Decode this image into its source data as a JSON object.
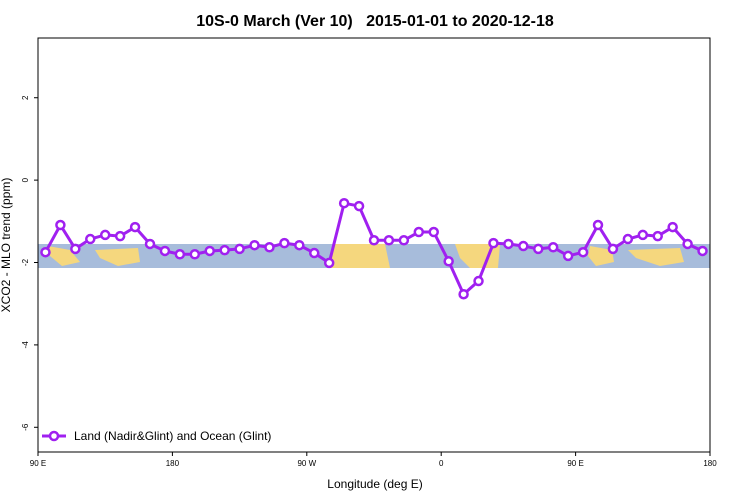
{
  "chart_data": {
    "type": "line",
    "title": "10S-0 March (Ver 10)   2015-01-01 to 2020-12-18",
    "x_label": "Longitude (deg E)",
    "y_label": "XCO2 - MLO trend (ppm)",
    "x": [
      95,
      105,
      115,
      125,
      135,
      145,
      155,
      165,
      175,
      185,
      195,
      205,
      215,
      225,
      235,
      245,
      255,
      265,
      275,
      285,
      295,
      305,
      315,
      325,
      335,
      345,
      355,
      365,
      375,
      385,
      395,
      405,
      415,
      425,
      435,
      445,
      455,
      465,
      475,
      485,
      495,
      505,
      515,
      525,
      535
    ],
    "series": [
      {
        "name": "Land (Nadir&Glint) and Ocean (Glint)",
        "color": "#a020f0",
        "values": [
          -1.75,
          -1.09,
          -1.67,
          -1.43,
          -1.33,
          -1.36,
          -1.14,
          -1.55,
          -1.72,
          -1.8,
          -1.8,
          -1.72,
          -1.7,
          -1.67,
          -1.58,
          -1.63,
          -1.53,
          -1.58,
          -1.77,
          -2.01,
          -0.56,
          -0.63,
          -1.46,
          -1.46,
          -1.46,
          -1.26,
          -1.26,
          -1.97,
          -2.77,
          -2.45,
          -1.53,
          -1.55,
          -1.6,
          -1.67,
          -1.63,
          -1.84,
          -1.75,
          -1.09,
          -1.67,
          -1.43,
          -1.33,
          -1.36,
          -1.14,
          -1.55,
          -1.72
        ]
      }
    ],
    "xlim": [
      90,
      540
    ],
    "ylim": [
      -6.6,
      3.45
    ],
    "xticks": [
      {
        "value": 90,
        "label": "90 E"
      },
      {
        "value": 180,
        "label": "180"
      },
      {
        "value": 270,
        "label": "90 W"
      },
      {
        "value": 360,
        "label": "0"
      },
      {
        "value": 450,
        "label": "90 E"
      },
      {
        "value": 540,
        "label": "180"
      }
    ],
    "yticks": [
      -6,
      -4,
      -2,
      0,
      2
    ],
    "legend": "bottom-left"
  }
}
